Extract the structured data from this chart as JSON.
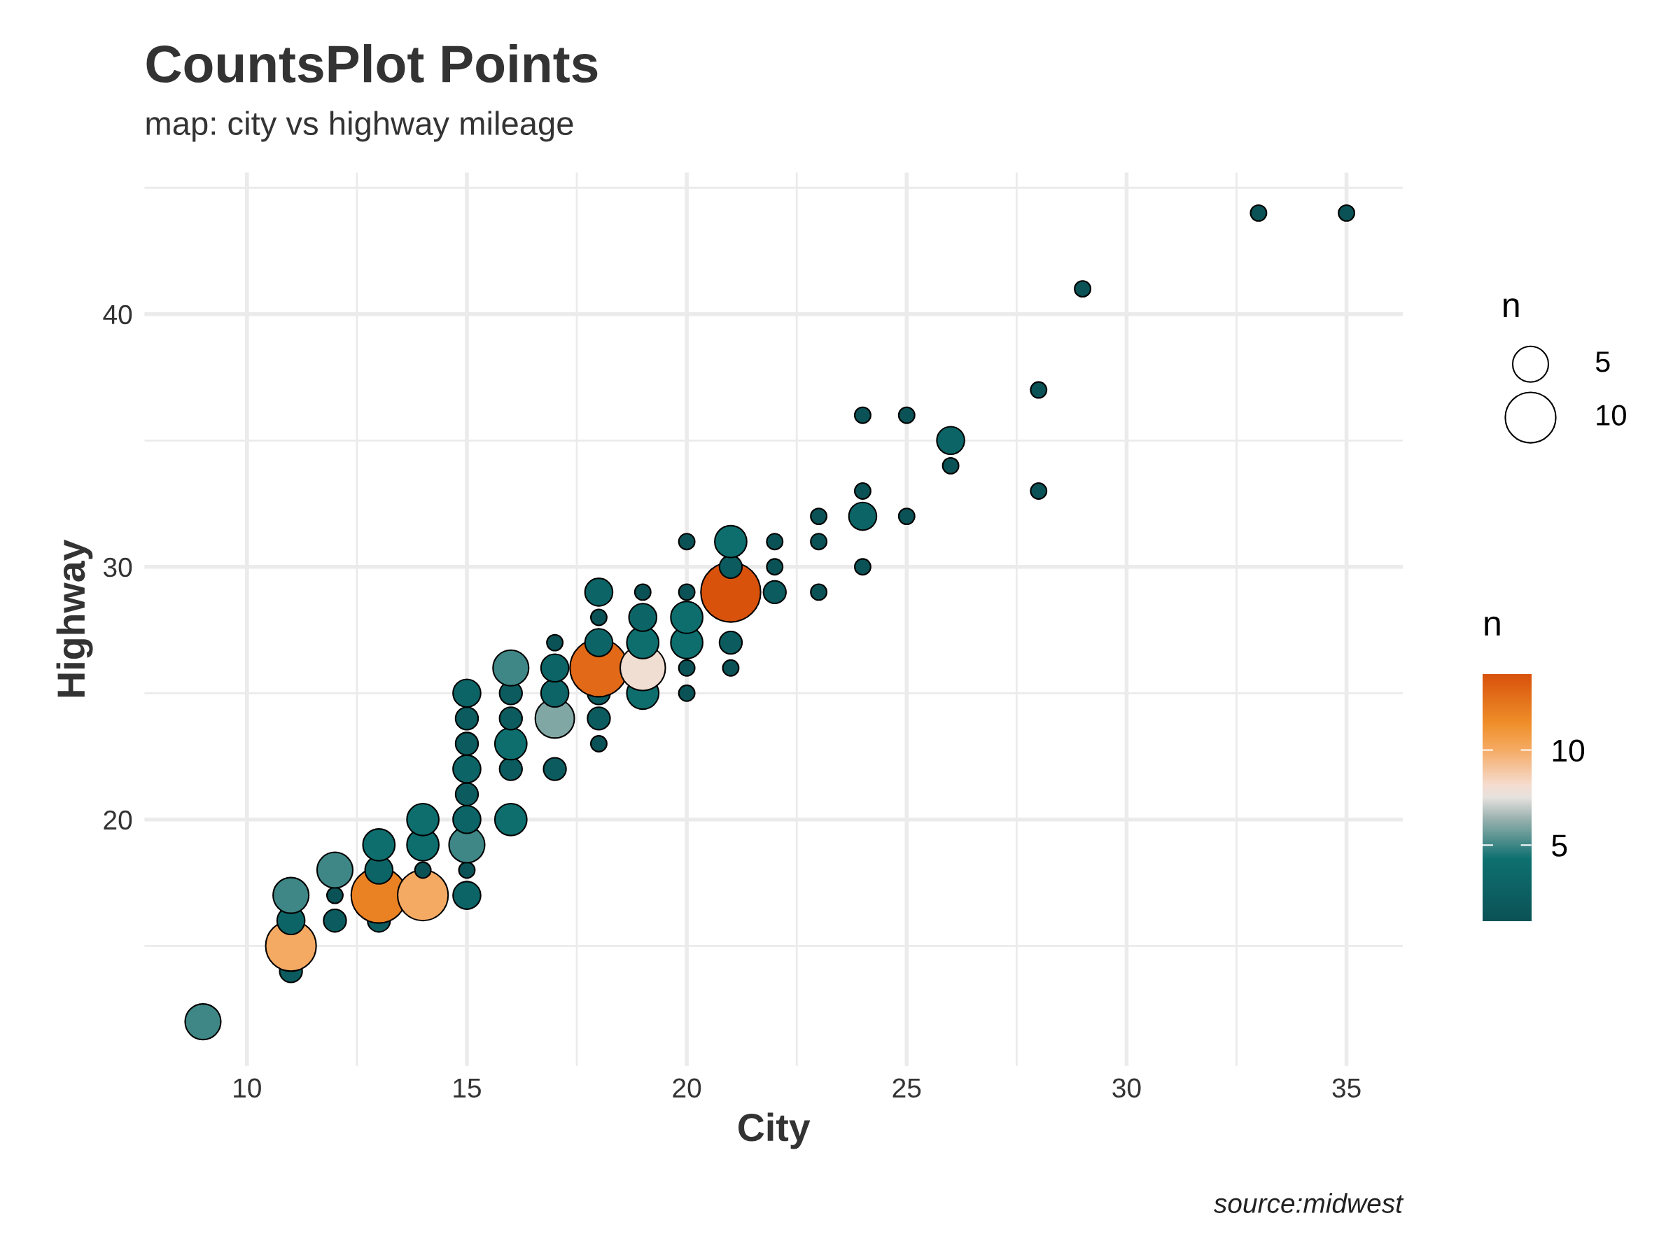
{
  "chart_data": {
    "type": "bubble",
    "title": "CountsPlot Points",
    "subtitle": "map: city vs highway mileage",
    "xlabel": "City",
    "ylabel": "Highway",
    "legend_title": "n",
    "clabel": "n",
    "annotations": [
      "source:midwest"
    ],
    "x": [
      9,
      11,
      11,
      11,
      11,
      12,
      12,
      12,
      13,
      13,
      13,
      13,
      14,
      14,
      14,
      14,
      15,
      15,
      15,
      15,
      15,
      15,
      15,
      15,
      15,
      16,
      16,
      16,
      16,
      16,
      16,
      17,
      17,
      17,
      17,
      17,
      18,
      18,
      18,
      18,
      18,
      18,
      18,
      19,
      19,
      19,
      19,
      19,
      20,
      20,
      20,
      20,
      20,
      20,
      21,
      21,
      21,
      21,
      21,
      22,
      22,
      22,
      23,
      23,
      23,
      24,
      24,
      24,
      24,
      25,
      25,
      26,
      26,
      28,
      28,
      29,
      33,
      35
    ],
    "values": [
      12,
      14,
      15,
      16,
      17,
      16,
      17,
      18,
      16,
      17,
      18,
      19,
      17,
      18,
      19,
      20,
      17,
      18,
      19,
      20,
      21,
      22,
      23,
      24,
      25,
      20,
      22,
      23,
      24,
      25,
      26,
      22,
      24,
      25,
      26,
      27,
      23,
      24,
      25,
      26,
      27,
      28,
      29,
      25,
      26,
      27,
      28,
      29,
      25,
      26,
      27,
      28,
      29,
      31,
      26,
      27,
      29,
      30,
      31,
      29,
      30,
      31,
      29,
      31,
      32,
      30,
      32,
      33,
      36,
      32,
      36,
      34,
      35,
      33,
      37,
      41,
      44,
      44
    ],
    "sizes": [
      5,
      2,
      10,
      3,
      5,
      2,
      1,
      5,
      2,
      12,
      3,
      4,
      10,
      1,
      4,
      4,
      3,
      1,
      5,
      3,
      2,
      3,
      2,
      2,
      3,
      4,
      2,
      4,
      2,
      2,
      5,
      2,
      6,
      3,
      3,
      1,
      1,
      2,
      2,
      13,
      3,
      1,
      3,
      4,
      8,
      4,
      3,
      1,
      1,
      1,
      4,
      4,
      1,
      1,
      1,
      2,
      14,
      2,
      4,
      2,
      1,
      1,
      1,
      1,
      1,
      1,
      3,
      1,
      1,
      1,
      1,
      1,
      3,
      1,
      1,
      1,
      1,
      1
    ],
    "cvalues": [
      5,
      2,
      10,
      3,
      5,
      2,
      1,
      5,
      2,
      12,
      3,
      4,
      10,
      1,
      4,
      4,
      3,
      1,
      5,
      3,
      2,
      3,
      2,
      2,
      3,
      4,
      2,
      4,
      2,
      2,
      5,
      2,
      6,
      3,
      3,
      1,
      1,
      2,
      2,
      13,
      3,
      1,
      3,
      4,
      8,
      4,
      3,
      1,
      1,
      1,
      4,
      4,
      1,
      1,
      1,
      2,
      14,
      2,
      4,
      2,
      1,
      1,
      1,
      1,
      1,
      1,
      3,
      1,
      1,
      1,
      1,
      1,
      3,
      1,
      1,
      1,
      1,
      1
    ],
    "size_legend": [
      5,
      10
    ],
    "clim": [
      1,
      14
    ],
    "cticks": [
      5,
      10
    ],
    "xlim": [
      7.67,
      36.28
    ],
    "ylim": [
      10.25,
      45.6
    ],
    "xticks": [
      10,
      15,
      20,
      25,
      30,
      35
    ],
    "yticks": [
      20,
      30,
      40
    ],
    "grid": true
  }
}
